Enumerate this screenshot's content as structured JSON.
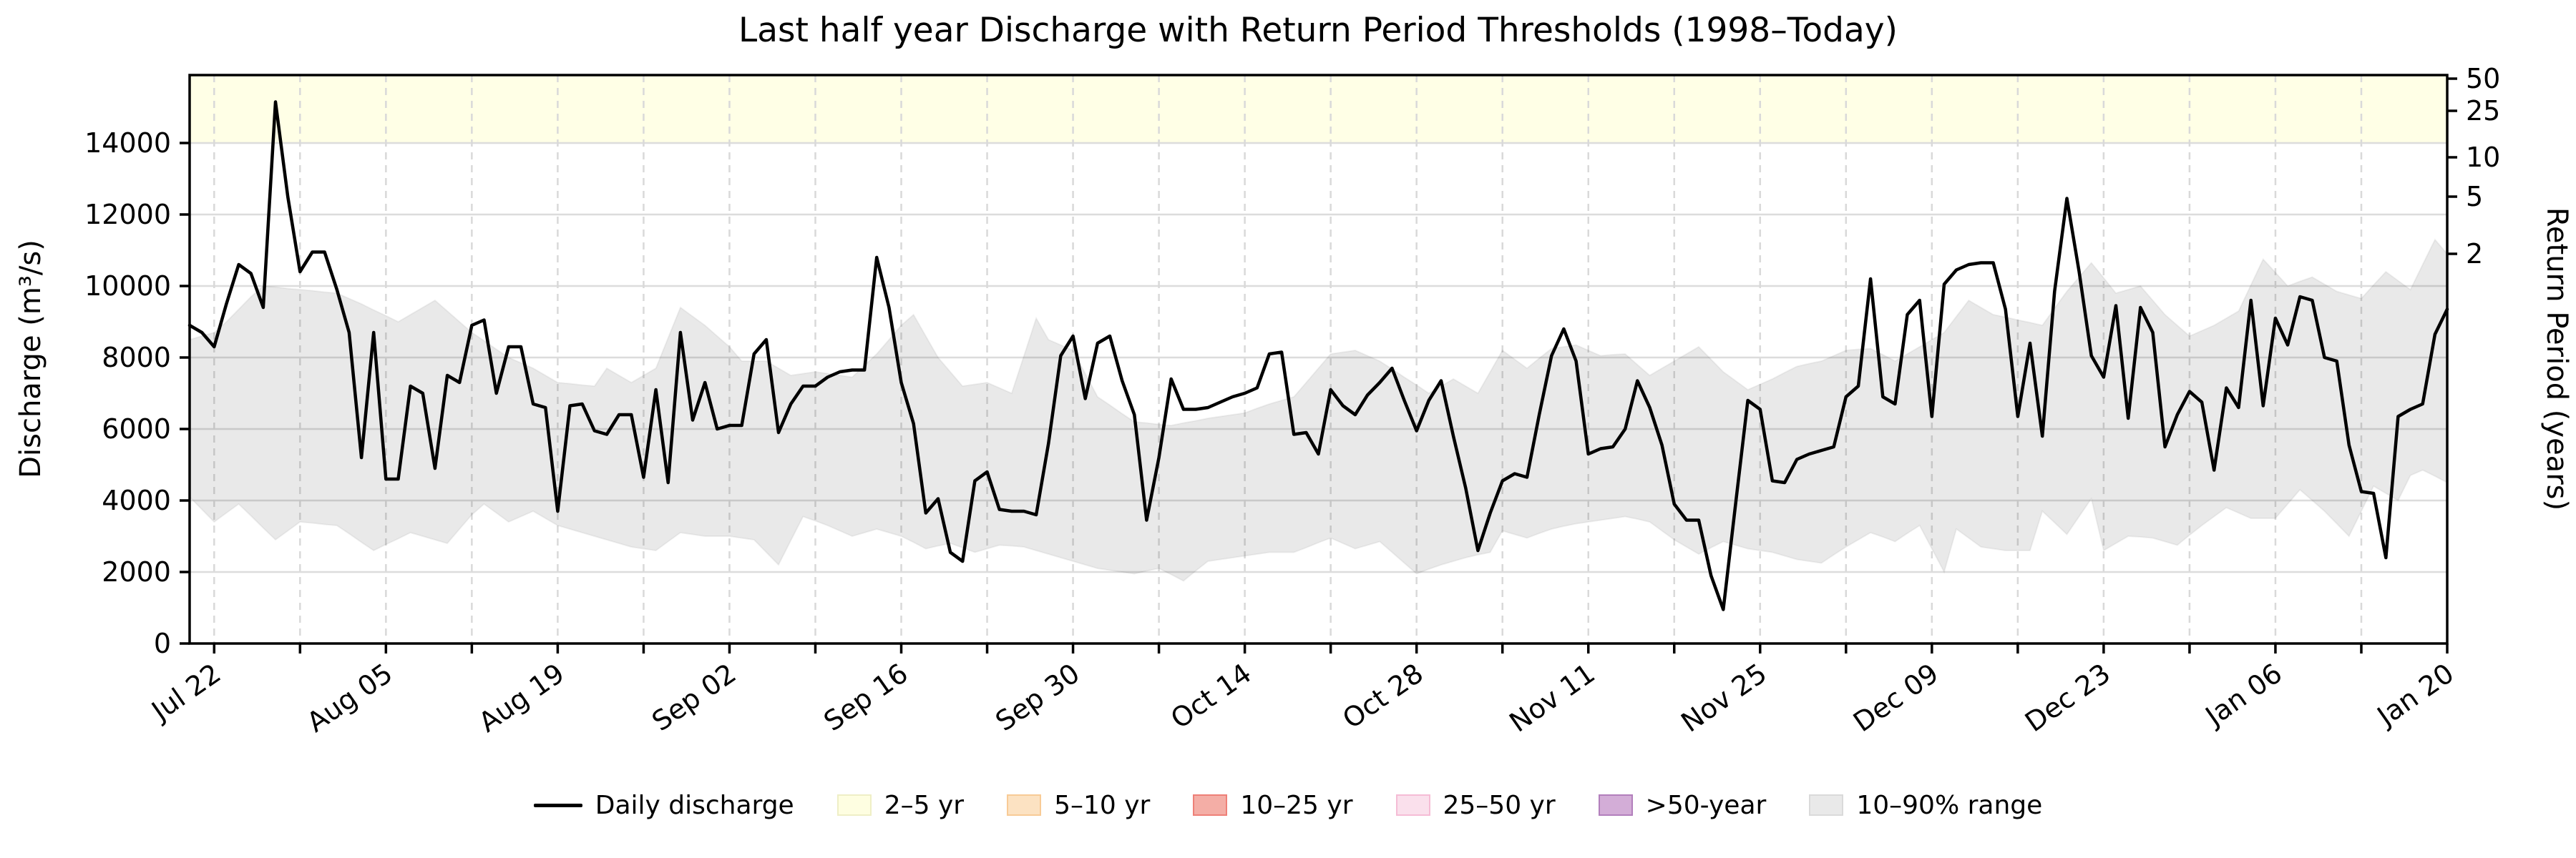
{
  "title": "Last half year Discharge with Return Period Thresholds (1998–Today)",
  "axes": {
    "y_left_label": "Discharge (m³/s)",
    "y_right_label": "Return Period (years)"
  },
  "legend": [
    {
      "label": "Daily discharge",
      "type": "line",
      "fill": "#000000",
      "border": "#000000"
    },
    {
      "label": "2–5 yr",
      "type": "patch",
      "fill": "#FEFEE1",
      "border": "#EFEFC6"
    },
    {
      "label": "5–10 yr",
      "type": "patch",
      "fill": "#FCE2C2",
      "border": "#F8CB96"
    },
    {
      "label": "10–25 yr",
      "type": "patch",
      "fill": "#F4AEA6",
      "border": "#EE8078"
    },
    {
      "label": "25–50 yr",
      "type": "patch",
      "fill": "#FAE0EC",
      "border": "#F5BCD5"
    },
    {
      "label": ">50-year",
      "type": "patch",
      "fill": "#D3ADD7",
      "border": "#B27FBC"
    },
    {
      "label": "10–90% range",
      "type": "patch",
      "fill": "#E9E9E9",
      "border": "#DADADA"
    }
  ],
  "colors": {
    "background": "#FFFFFF",
    "discharge_line": "#000000",
    "band_2_5yr_fill": "#FFFFE0",
    "percentile_band_fill": "#E9E9E9",
    "h_gridline": "#DCDCDC",
    "v_gridline": "#D9D9D9",
    "spine": "#000000"
  },
  "chart_data": {
    "type": "line",
    "title": "Last half year Discharge with Return Period Thresholds (1998–Today)",
    "xlabel": "",
    "ylabel": "Discharge (m³/s)",
    "ylabel_right": "Return Period (years)",
    "ylim": [
      0,
      15900
    ],
    "y_ticks": [
      0,
      2000,
      4000,
      6000,
      8000,
      10000,
      12000,
      14000
    ],
    "x_daily_from": "Jul 20",
    "x_daily_to": "Jan 20",
    "n_days": 185,
    "x_tick_days": [
      2,
      16,
      30,
      44,
      58,
      72,
      86,
      100,
      114,
      128,
      142,
      156,
      170,
      184
    ],
    "x_tick_labels": [
      "Jul 22",
      "Aug 05",
      "Aug 19",
      "Sep 02",
      "Sep 16",
      "Sep 30",
      "Oct 14",
      "Oct 28",
      "Nov 11",
      "Nov 25",
      "Dec 09",
      "Dec 23",
      "Jan 06",
      "Jan 20"
    ],
    "minor_gridline_week_start_day": 2,
    "right_axis_ticks": [
      {
        "label": "50",
        "at_discharge": 15800
      },
      {
        "label": "25",
        "at_discharge": 14900
      },
      {
        "label": "10",
        "at_discharge": 13600
      },
      {
        "label": "5",
        "at_discharge": 12500
      },
      {
        "label": "2",
        "at_discharge": 10900
      }
    ],
    "thresholds": {
      "band_2_5yr_lower_discharge": 14000,
      "band_2_5yr_upper_discharge": 15900
    },
    "grid": {
      "horizontal": "solid",
      "vertical": "dashed-weekly"
    },
    "legend_position": "bottom-center",
    "series": [
      {
        "name": "Daily discharge",
        "values": [
          8900,
          8700,
          8300,
          9500,
          10600,
          10350,
          9400,
          15150,
          12500,
          10400,
          10950,
          10950,
          9900,
          8700,
          5200,
          8700,
          4600,
          4600,
          7200,
          7000,
          4900,
          7500,
          7300,
          8900,
          9050,
          7000,
          8300,
          8300,
          6700,
          6600,
          3700,
          6650,
          6700,
          5950,
          5850,
          6400,
          6400,
          4650,
          7100,
          4500,
          8700,
          6250,
          7300,
          6000,
          6100,
          6100,
          8100,
          8500,
          5900,
          6700,
          7200,
          7200,
          7450,
          7600,
          7650,
          7650,
          10800,
          9400,
          7300,
          6150,
          3650,
          4050,
          2550,
          2300,
          4550,
          4800,
          3750,
          3700,
          3700,
          3600,
          5600,
          8050,
          8600,
          6850,
          8400,
          8600,
          7350,
          6400,
          3450,
          5200,
          7400,
          6550,
          6550,
          6600,
          6750,
          6900,
          7000,
          7150,
          8100,
          8150,
          5850,
          5900,
          5300,
          7100,
          6650,
          6400,
          6950,
          7300,
          7700,
          6800,
          5950,
          6800,
          7350,
          5800,
          4350,
          2600,
          3650,
          4550,
          4750,
          4650,
          6400,
          8050,
          8800,
          7900,
          5300,
          5450,
          5500,
          6000,
          7350,
          6600,
          5550,
          3900,
          3450,
          3450,
          1900,
          950,
          3900,
          6800,
          6550,
          4550,
          4500,
          5150,
          5300,
          5400,
          5500,
          6900,
          7200,
          10200,
          6900,
          6700,
          9200,
          9600,
          6350,
          10050,
          10450,
          10600,
          10650,
          10650,
          9350,
          6350,
          8400,
          5800,
          9850,
          12450,
          10400,
          8050,
          7450,
          9450,
          6300,
          9400,
          8700,
          5500,
          6400,
          7050,
          6750,
          4850,
          7150,
          6600,
          9600,
          6650,
          9100,
          8350,
          9700,
          9600,
          8000,
          7900,
          5550,
          4250,
          4200,
          2400,
          6350,
          6550,
          6700,
          8650,
          9350
        ]
      },
      {
        "name": "10–90% range upper",
        "values": [
          8500,
          8600,
          8700,
          9000,
          9350,
          9700,
          10000,
          9970,
          9930,
          9900,
          9870,
          9830,
          9800,
          9650,
          9500,
          9330,
          9170,
          9000,
          9200,
          9400,
          9600,
          9300,
          9000,
          8700,
          8470,
          8230,
          8000,
          7850,
          7700,
          7500,
          7300,
          7270,
          7230,
          7200,
          7700,
          7500,
          7300,
          7500,
          7700,
          8550,
          9400,
          9150,
          8900,
          8600,
          8300,
          7900,
          7900,
          7900,
          7700,
          7500,
          7550,
          7600,
          7550,
          7500,
          7450,
          7780,
          8100,
          8500,
          8900,
          9200,
          8600,
          8000,
          7600,
          7200,
          7250,
          7300,
          7150,
          7000,
          8050,
          9100,
          8500,
          8350,
          8200,
          7550,
          6900,
          6670,
          6430,
          6200,
          6170,
          6130,
          6100,
          6170,
          6230,
          6300,
          6350,
          6400,
          6450,
          6580,
          6700,
          6800,
          6900,
          7300,
          7700,
          8100,
          8150,
          8200,
          8050,
          7900,
          7680,
          7450,
          7230,
          7000,
          7200,
          7400,
          7200,
          7000,
          7600,
          8200,
          7950,
          7700,
          7980,
          8250,
          8300,
          8350,
          8200,
          8050,
          8080,
          8100,
          7800,
          7500,
          7700,
          7900,
          8100,
          8300,
          7950,
          7600,
          7350,
          7100,
          7250,
          7400,
          7580,
          7750,
          7830,
          7900,
          8050,
          8200,
          8230,
          8250,
          8080,
          7900,
          8100,
          8300,
          8500,
          8700,
          9150,
          9600,
          9400,
          9200,
          9130,
          9050,
          8980,
          8900,
          9380,
          9850,
          10250,
          10650,
          10230,
          9800,
          9900,
          10000,
          9600,
          9200,
          8900,
          8600,
          8750,
          8900,
          9100,
          9300,
          10030,
          10750,
          10380,
          10000,
          10130,
          10250,
          10050,
          9850,
          9750,
          9650,
          10030,
          10400,
          10150,
          9900,
          10600,
          11300,
          10900
        ]
      },
      {
        "name": "10–90% range lower",
        "values": [
          4100,
          3750,
          3400,
          3650,
          3900,
          3570,
          3230,
          2900,
          3150,
          3400,
          3370,
          3330,
          3300,
          3070,
          2830,
          2600,
          2770,
          2930,
          3100,
          3000,
          2900,
          2800,
          3200,
          3600,
          3900,
          3650,
          3400,
          3550,
          3700,
          3500,
          3300,
          3200,
          3100,
          3000,
          2900,
          2800,
          2700,
          2650,
          2600,
          2850,
          3100,
          3050,
          3000,
          3000,
          3000,
          2950,
          2900,
          2550,
          2200,
          2880,
          3550,
          3430,
          3300,
          3150,
          3000,
          3100,
          3200,
          3100,
          3000,
          2830,
          2650,
          2730,
          2800,
          2680,
          2550,
          2650,
          2750,
          2730,
          2700,
          2600,
          2500,
          2400,
          2300,
          2200,
          2100,
          2050,
          2000,
          1950,
          2030,
          2100,
          1930,
          1750,
          2030,
          2300,
          2350,
          2400,
          2450,
          2500,
          2550,
          2550,
          2550,
          2680,
          2820,
          2950,
          2800,
          2650,
          2750,
          2850,
          2550,
          2250,
          1950,
          2080,
          2200,
          2300,
          2400,
          2480,
          2550,
          3150,
          3050,
          2950,
          3080,
          3200,
          3280,
          3350,
          3400,
          3450,
          3500,
          3550,
          3480,
          3400,
          3150,
          2900,
          2700,
          2500,
          2680,
          2850,
          2750,
          2650,
          2600,
          2550,
          2450,
          2350,
          2300,
          2250,
          2480,
          2700,
          2900,
          3100,
          2980,
          2850,
          3080,
          3300,
          2650,
          2000,
          3200,
          2950,
          2700,
          2650,
          2600,
          2600,
          2600,
          3700,
          3380,
          3050,
          3550,
          4050,
          2600,
          2800,
          3000,
          2980,
          2950,
          2850,
          2750,
          3030,
          3300,
          3550,
          3800,
          3650,
          3500,
          3500,
          3500,
          3900,
          4300,
          4000,
          3700,
          3350,
          3000,
          3700,
          4400,
          4200,
          4000,
          4700,
          4850,
          4680,
          4500
        ]
      }
    ]
  }
}
